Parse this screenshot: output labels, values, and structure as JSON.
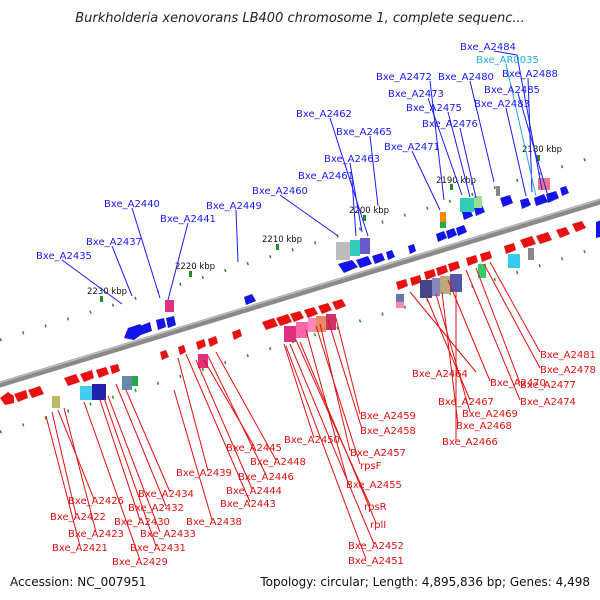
{
  "title": "Burkholderia xenovorans LB400 chromosome 1, complete sequenc...",
  "footer": {
    "accession": "Accession: NC_007951",
    "summary": "Topology: circular; Length: 4,895,836 bp; Genes: 4,498"
  },
  "colors": {
    "forward": "#1414e6",
    "reverse": "#e81010",
    "rna": "#22aadd",
    "axis": "#808080",
    "tick": "#1a8a1a"
  },
  "ticks": [
    "2180 kbp",
    "2190 kbp",
    "2200 kbp",
    "2210 kbp",
    "2220 kbp",
    "2230 kbp"
  ],
  "labels_forward": [
    "Bxe_A2484",
    "Bxe_AR0035",
    "Bxe_A2488",
    "Bxe_A2472",
    "Bxe_A2480",
    "Bxe_A2485",
    "Bxe_A2473",
    "Bxe_A2483",
    "Bxe_A2475",
    "Bxe_A2462",
    "Bxe_A2476",
    "Bxe_A2465",
    "Bxe_A2471",
    "Bxe_A2463",
    "Bxe_A2461",
    "Bxe_A2460",
    "Bxe_A2440",
    "Bxe_A2449",
    "Bxe_A2441",
    "Bxe_A2437",
    "Bxe_A2435"
  ],
  "labels_reverse": [
    "Bxe_A2481",
    "Bxe_A2478",
    "Bxe_A2464",
    "Bxe_A2470",
    "Bxe_A2477",
    "Bxe_A2467",
    "Bxe_A2474",
    "Bxe_A2469",
    "Bxe_A2459",
    "Bxe_A2468",
    "Bxe_A2450",
    "Bxe_A2458",
    "Bxe_A2466",
    "Bxe_A2445",
    "Bxe_A2457",
    "Bxe_A2448",
    "rpsF",
    "Bxe_A2439",
    "Bxe_A2446",
    "Bxe_A2455",
    "Bxe_A2444",
    "Bxe_A2434",
    "Bxe_A2443",
    "Bxe_A2426",
    "Bxe_A2432",
    "rpsR",
    "Bxe_A2422",
    "Bxe_A2430",
    "Bxe_A2438",
    "rplI",
    "Bxe_A2423",
    "Bxe_A2433",
    "Bxe_A2452",
    "Bxe_A2421",
    "Bxe_A2431",
    "Bxe_A2451",
    "Bxe_A2429"
  ]
}
